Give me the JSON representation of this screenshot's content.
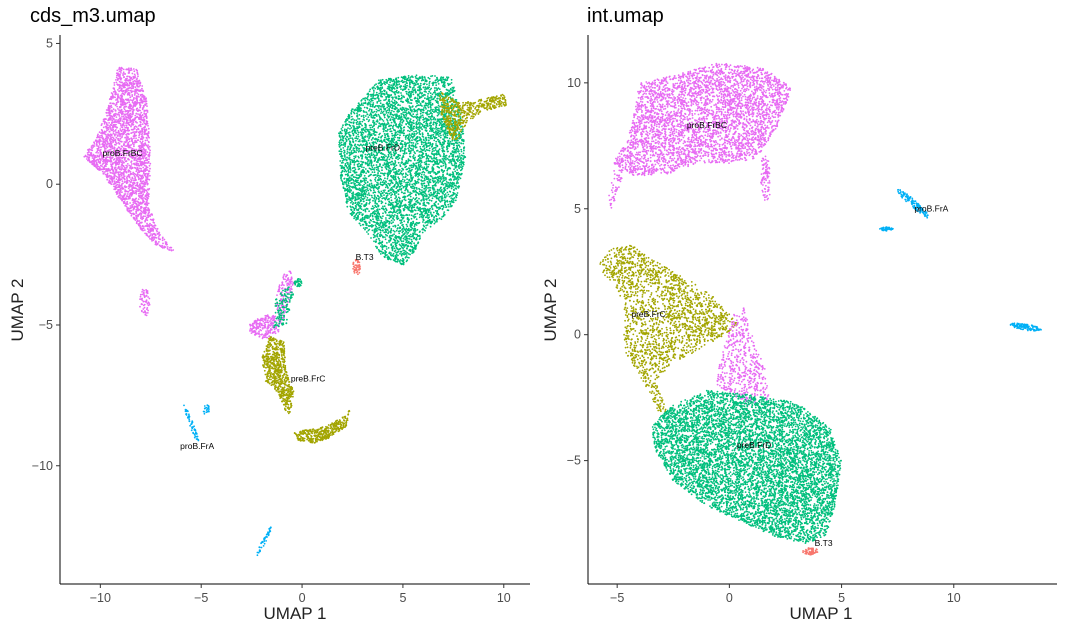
{
  "colors": {
    "B.T3": "#F8766D",
    "preB.FrC": "#A3A500",
    "preB.FrD": "#00BF7D",
    "proB.FrA": "#00B0F6",
    "proB.FrBC": "#E76BF3"
  },
  "chart_data": [
    {
      "type": "scatter",
      "title": "cds_m3.umap",
      "xlabel": "UMAP 1",
      "ylabel": "UMAP 2",
      "xlim": [
        -12,
        11.3
      ],
      "ylim": [
        -14.2,
        5.3
      ],
      "xticks": [
        -10,
        -5,
        0,
        5,
        10
      ],
      "xtick_labels": [
        "−10",
        "−5",
        "0",
        "5",
        "10"
      ],
      "yticks": [
        5,
        0,
        -5,
        -10
      ],
      "ytick_labels": [
        "5",
        "0",
        "−5",
        "−10"
      ],
      "grid": false,
      "legend": "none",
      "cluster_labels": [
        {
          "label": "proB.FrBC",
          "x": -8.9,
          "y": 1.0
        },
        {
          "label": "preB.FrD",
          "x": 4.0,
          "y": 1.2
        },
        {
          "label": "B.T3",
          "x": 3.1,
          "y": -2.7
        },
        {
          "label": "preB.FrC",
          "x": 0.3,
          "y": -7.0
        },
        {
          "label": "proB.FrA",
          "x": -5.2,
          "y": -9.4
        }
      ],
      "clusters": [
        {
          "group": "proB.FrBC",
          "shape": "poly",
          "n": 2600,
          "polygon": [
            [
              -9.1,
              4.2
            ],
            [
              -8.2,
              4.1
            ],
            [
              -7.7,
              3.0
            ],
            [
              -7.5,
              1.0
            ],
            [
              -7.6,
              -0.8
            ],
            [
              -7.0,
              -1.8
            ],
            [
              -6.3,
              -2.4
            ],
            [
              -7.2,
              -2.2
            ],
            [
              -8.0,
              -1.6
            ],
            [
              -8.7,
              -0.9
            ],
            [
              -9.9,
              0.4
            ],
            [
              -10.9,
              1.0
            ],
            [
              -10.2,
              1.6
            ],
            [
              -9.7,
              2.6
            ]
          ]
        },
        {
          "group": "proB.FrBC",
          "shape": "ellipse",
          "n": 60,
          "cx": -7.8,
          "cy": -4.2,
          "rx": 0.25,
          "ry": 0.5,
          "rot": 0
        },
        {
          "group": "preB.FrD",
          "shape": "poly",
          "n": 5200,
          "polygon": [
            [
              3.8,
              3.7
            ],
            [
              5.6,
              3.9
            ],
            [
              7.4,
              3.8
            ],
            [
              7.9,
              2.5
            ],
            [
              8.1,
              1.0
            ],
            [
              7.7,
              -0.5
            ],
            [
              7.0,
              -1.2
            ],
            [
              6.0,
              -1.7
            ],
            [
              5.6,
              -2.4
            ],
            [
              5.0,
              -2.9
            ],
            [
              4.0,
              -2.6
            ],
            [
              3.3,
              -1.8
            ],
            [
              2.3,
              -1.0
            ],
            [
              1.9,
              0.3
            ],
            [
              1.8,
              1.8
            ],
            [
              2.4,
              2.6
            ]
          ]
        },
        {
          "group": "preB.FrC",
          "shape": "poly",
          "n": 500,
          "polygon": [
            [
              6.8,
              3.3
            ],
            [
              7.8,
              2.9
            ],
            [
              8.8,
              3.0
            ],
            [
              10.0,
              3.2
            ],
            [
              10.2,
              2.8
            ],
            [
              9.0,
              2.6
            ],
            [
              8.2,
              2.2
            ],
            [
              7.7,
              1.6
            ],
            [
              7.4,
              1.6
            ],
            [
              6.9,
              2.5
            ]
          ]
        },
        {
          "group": "B.T3",
          "shape": "ellipse",
          "n": 45,
          "cx": 2.7,
          "cy": -2.95,
          "rx": 0.2,
          "ry": 0.28,
          "rot": 0
        },
        {
          "group": "preB.FrC",
          "shape": "poly",
          "n": 650,
          "polygon": [
            [
              -1.6,
              -5.4
            ],
            [
              -0.9,
              -5.6
            ],
            [
              -0.8,
              -6.6
            ],
            [
              -0.4,
              -7.4
            ],
            [
              -0.6,
              -8.2
            ],
            [
              -0.8,
              -8.1
            ],
            [
              -1.2,
              -7.4
            ],
            [
              -1.8,
              -7.0
            ],
            [
              -2.0,
              -6.2
            ]
          ]
        },
        {
          "group": "preB.FrC",
          "shape": "poly",
          "n": 380,
          "polygon": [
            [
              -0.4,
              -8.8
            ],
            [
              1.2,
              -8.6
            ],
            [
              2.2,
              -8.2
            ],
            [
              2.4,
              -7.9
            ],
            [
              2.2,
              -8.6
            ],
            [
              1.4,
              -9.0
            ],
            [
              0.6,
              -9.2
            ],
            [
              -0.2,
              -9.1
            ]
          ]
        },
        {
          "group": "proB.FrBC",
          "shape": "poly",
          "n": 230,
          "polygon": [
            [
              -2.6,
              -4.9
            ],
            [
              -1.6,
              -4.6
            ],
            [
              -1.0,
              -4.8
            ],
            [
              -1.2,
              -5.3
            ],
            [
              -1.9,
              -5.5
            ],
            [
              -2.6,
              -5.3
            ]
          ]
        },
        {
          "group": "proB.FrBC",
          "shape": "poly",
          "n": 130,
          "polygon": [
            [
              -1.0,
              -3.2
            ],
            [
              -0.6,
              -3.0
            ],
            [
              -0.4,
              -3.6
            ],
            [
              -0.9,
              -4.8
            ],
            [
              -1.4,
              -4.4
            ]
          ]
        },
        {
          "group": "preB.FrD",
          "shape": "poly",
          "n": 130,
          "polygon": [
            [
              -1.3,
              -4.0
            ],
            [
              -0.7,
              -3.6
            ],
            [
              -0.4,
              -3.9
            ],
            [
              -0.8,
              -5.0
            ],
            [
              -1.4,
              -5.1
            ]
          ]
        },
        {
          "group": "preB.FrD",
          "shape": "ellipse",
          "n": 35,
          "cx": -0.2,
          "cy": -3.5,
          "rx": 0.18,
          "ry": 0.15,
          "rot": 0
        },
        {
          "group": "proB.FrA",
          "shape": "ellipse",
          "n": 60,
          "cx": -5.45,
          "cy": -8.6,
          "rx": 0.85,
          "ry": 0.09,
          "rot": -62
        },
        {
          "group": "proB.FrA",
          "shape": "ellipse",
          "n": 22,
          "cx": -4.75,
          "cy": -8.0,
          "rx": 0.15,
          "ry": 0.2,
          "rot": 0
        },
        {
          "group": "proB.FrA",
          "shape": "ellipse",
          "n": 45,
          "cx": -1.9,
          "cy": -12.7,
          "rx": 0.65,
          "ry": 0.08,
          "rot": 55
        }
      ]
    },
    {
      "type": "scatter",
      "title": "int.umap",
      "xlabel": "UMAP 1",
      "ylabel": "UMAP 2",
      "xlim": [
        -6.3,
        14.6
      ],
      "ylim": [
        -9.9,
        11.9
      ],
      "xticks": [
        -5,
        0,
        5,
        10
      ],
      "xtick_labels": [
        "−5",
        "0",
        "5",
        "10"
      ],
      "yticks": [
        10,
        5,
        0,
        -5
      ],
      "ytick_labels": [
        "10",
        "5",
        "0",
        "−5"
      ],
      "grid": false,
      "legend": "none",
      "cluster_labels": [
        {
          "label": "proB.FrBC",
          "x": -1.0,
          "y": 8.2
        },
        {
          "label": "proB.FrA",
          "x": 9.0,
          "y": 4.9
        },
        {
          "label": "preB.FrC",
          "x": -3.6,
          "y": 0.7
        },
        {
          "label": "preB.FrD",
          "x": 1.1,
          "y": -4.5
        },
        {
          "label": "B.T3",
          "x": 4.2,
          "y": -8.4
        }
      ],
      "clusters": [
        {
          "group": "proB.FrBC",
          "shape": "poly",
          "n": 3800,
          "polygon": [
            [
              -4.0,
              10.0
            ],
            [
              -2.5,
              10.3
            ],
            [
              -0.5,
              10.8
            ],
            [
              1.5,
              10.6
            ],
            [
              2.8,
              9.8
            ],
            [
              2.1,
              8.2
            ],
            [
              1.2,
              7.0
            ],
            [
              0.0,
              6.8
            ],
            [
              -1.5,
              6.8
            ],
            [
              -2.6,
              6.4
            ],
            [
              -4.2,
              6.3
            ],
            [
              -5.4,
              6.9
            ],
            [
              -5.2,
              6.9
            ],
            [
              -4.5,
              7.8
            ],
            [
              -4.2,
              9.0
            ]
          ]
        },
        {
          "group": "proB.FrBC",
          "shape": "poly",
          "n": 90,
          "polygon": [
            [
              1.4,
              7.2
            ],
            [
              1.8,
              7.0
            ],
            [
              1.8,
              5.5
            ],
            [
              1.6,
              5.2
            ],
            [
              1.4,
              5.8
            ]
          ]
        },
        {
          "group": "proB.FrBC",
          "shape": "poly",
          "n": 50,
          "polygon": [
            [
              -5.1,
              6.8
            ],
            [
              -4.6,
              6.7
            ],
            [
              -4.9,
              5.8
            ],
            [
              -5.3,
              4.9
            ],
            [
              -5.4,
              5.4
            ]
          ]
        },
        {
          "group": "proB.FrA",
          "shape": "ellipse",
          "n": 130,
          "cx": 8.2,
          "cy": 5.2,
          "rx": 0.9,
          "ry": 0.15,
          "rot": -38
        },
        {
          "group": "proB.FrA",
          "shape": "ellipse",
          "n": 45,
          "cx": 7.0,
          "cy": 4.2,
          "rx": 0.3,
          "ry": 0.08,
          "rot": 0
        },
        {
          "group": "proB.FrA",
          "shape": "ellipse",
          "n": 120,
          "cx": 13.2,
          "cy": 0.3,
          "rx": 0.7,
          "ry": 0.12,
          "rot": -8
        },
        {
          "group": "preB.FrC",
          "shape": "poly",
          "n": 1900,
          "polygon": [
            [
              -5.3,
              3.4
            ],
            [
              -4.4,
              3.6
            ],
            [
              -3.5,
              3.0
            ],
            [
              -2.2,
              2.4
            ],
            [
              -0.8,
              1.6
            ],
            [
              0.4,
              0.4
            ],
            [
              -0.2,
              0.0
            ],
            [
              -1.2,
              -0.5
            ],
            [
              -2.6,
              -1.2
            ],
            [
              -3.3,
              -1.8
            ],
            [
              -2.8,
              -3.0
            ],
            [
              -3.0,
              -3.4
            ],
            [
              -3.4,
              -2.6
            ],
            [
              -4.0,
              -1.6
            ],
            [
              -4.7,
              -0.6
            ],
            [
              -4.7,
              1.2
            ],
            [
              -5.1,
              2.0
            ],
            [
              -5.6,
              2.4
            ],
            [
              -5.8,
              2.8
            ]
          ]
        },
        {
          "group": "proB.FrBC",
          "shape": "poly",
          "n": 500,
          "polygon": [
            [
              0.2,
              1.0
            ],
            [
              0.5,
              0.8
            ],
            [
              0.6,
              1.2
            ],
            [
              1.0,
              0.0
            ],
            [
              1.6,
              -1.4
            ],
            [
              1.8,
              -2.6
            ],
            [
              0.8,
              -2.8
            ],
            [
              -0.6,
              -2.0
            ],
            [
              -0.4,
              -1.0
            ],
            [
              -0.1,
              0.0
            ]
          ]
        },
        {
          "group": "preB.FrD",
          "shape": "poly",
          "n": 6800,
          "polygon": [
            [
              -2.5,
              -2.8
            ],
            [
              -1.0,
              -2.2
            ],
            [
              1.0,
              -2.4
            ],
            [
              3.0,
              -2.7
            ],
            [
              4.5,
              -3.7
            ],
            [
              5.0,
              -5.0
            ],
            [
              4.7,
              -6.8
            ],
            [
              4.3,
              -8.0
            ],
            [
              3.4,
              -8.3
            ],
            [
              2.0,
              -8.0
            ],
            [
              0.5,
              -7.4
            ],
            [
              -1.0,
              -6.8
            ],
            [
              -2.5,
              -5.8
            ],
            [
              -3.3,
              -4.6
            ],
            [
              -3.5,
              -3.6
            ]
          ]
        },
        {
          "group": "B.T3",
          "shape": "ellipse",
          "n": 55,
          "cx": 3.6,
          "cy": -8.6,
          "rx": 0.35,
          "ry": 0.14,
          "rot": 0
        }
      ]
    }
  ]
}
